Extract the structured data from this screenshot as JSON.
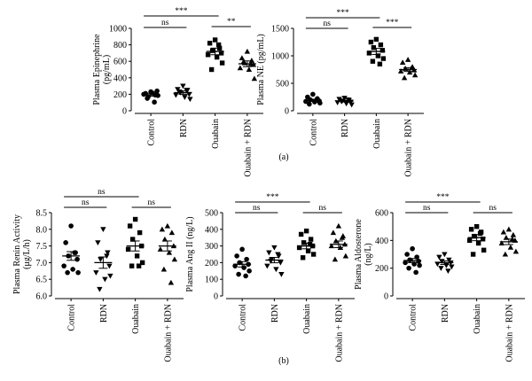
{
  "panel_labels": [
    "(a)",
    "(b)"
  ],
  "chart_data": [
    {
      "type": "scatter",
      "ylabel": "Plasma Epinephrine (pg/mL)",
      "ylim": [
        0,
        1000
      ],
      "yticks": [
        0,
        200,
        400,
        600,
        800,
        1000
      ],
      "categories": [
        "Control",
        "RDN",
        "Ouabain",
        "Ouabain + RDN"
      ],
      "markers": [
        "circle",
        "triangle-down",
        "square",
        "triangle-up"
      ],
      "points": [
        [
          230,
          210,
          190,
          170,
          240,
          200,
          215,
          185,
          150,
          105
        ],
        [
          300,
          260,
          250,
          220,
          200,
          190,
          165,
          140,
          230,
          250
        ],
        [
          860,
          820,
          760,
          730,
          700,
          680,
          650,
          580,
          500,
          800
        ],
        [
          720,
          640,
          610,
          580,
          560,
          520,
          500,
          390,
          600,
          570
        ]
      ],
      "means": [
        195,
        220,
        720,
        570
      ],
      "sems": [
        18,
        20,
        40,
        35
      ],
      "comparisons": [
        {
          "from": 0,
          "to": 2,
          "label": "***"
        },
        {
          "from": 0,
          "to": 1,
          "label": "ns"
        },
        {
          "from": 2,
          "to": 3,
          "label": "**"
        }
      ]
    },
    {
      "type": "scatter",
      "ylabel": "Plasma NE (pg/mL)",
      "ylim": [
        0,
        1500
      ],
      "yticks": [
        0,
        500,
        1000,
        1500
      ],
      "categories": [
        "Control",
        "RDN",
        "Ouabain",
        "Ouabain + RDN"
      ],
      "markers": [
        "circle",
        "triangle-down",
        "square",
        "triangle-up"
      ],
      "points": [
        [
          300,
          250,
          220,
          200,
          180,
          170,
          160,
          140,
          120,
          190
        ],
        [
          230,
          210,
          190,
          170,
          160,
          150,
          130,
          110,
          180,
          200
        ],
        [
          1300,
          1250,
          1200,
          1150,
          1100,
          1050,
          1000,
          950,
          900,
          850
        ],
        [
          930,
          880,
          800,
          770,
          740,
          720,
          700,
          650,
          600,
          780
        ]
      ],
      "means": [
        190,
        175,
        1080,
        750
      ],
      "sems": [
        20,
        15,
        55,
        35
      ],
      "comparisons": [
        {
          "from": 0,
          "to": 2,
          "label": "***"
        },
        {
          "from": 0,
          "to": 1,
          "label": "ns"
        },
        {
          "from": 2,
          "to": 3,
          "label": "***"
        }
      ]
    },
    {
      "type": "scatter",
      "ylabel": "Plasma Renin Activity (μg/L/h)",
      "ylim": [
        6.0,
        8.5
      ],
      "yticks": [
        6.0,
        6.5,
        7.0,
        7.5,
        8.0,
        8.5
      ],
      "categories": [
        "Control",
        "RDN",
        "Ouabain",
        "Ouabain + RDN"
      ],
      "markers": [
        "circle",
        "triangle-down",
        "square",
        "triangle-up"
      ],
      "points": [
        [
          8.1,
          7.6,
          7.3,
          7.2,
          7.1,
          6.9,
          6.8,
          6.7,
          6.7,
          7.3
        ],
        [
          8.0,
          7.6,
          7.3,
          7.1,
          6.9,
          6.7,
          6.5,
          6.6,
          6.2,
          7.2
        ],
        [
          8.3,
          8.1,
          7.9,
          7.7,
          7.5,
          7.4,
          7.2,
          7.0,
          6.9,
          6.9
        ],
        [
          8.1,
          8.0,
          7.9,
          7.7,
          7.5,
          7.4,
          7.3,
          7.1,
          6.8,
          6.4
        ]
      ],
      "means": [
        7.2,
        7.0,
        7.5,
        7.5
      ],
      "sems": [
        0.13,
        0.17,
        0.15,
        0.15
      ],
      "comparisons": [
        {
          "from": 0,
          "to": 2,
          "label": "ns"
        },
        {
          "from": 0,
          "to": 1,
          "label": "ns"
        },
        {
          "from": 2,
          "to": 3,
          "label": "ns"
        }
      ]
    },
    {
      "type": "scatter",
      "ylabel": "Plasma Ang II (ng/L)",
      "ylim": [
        0,
        500
      ],
      "yticks": [
        0,
        100,
        200,
        300,
        400,
        500
      ],
      "categories": [
        "Control",
        "RDN",
        "Ouabain",
        "Ouabain + RDN"
      ],
      "markers": [
        "circle",
        "triangle-down",
        "square",
        "triangle-up"
      ],
      "points": [
        [
          280,
          240,
          220,
          200,
          190,
          180,
          170,
          150,
          130,
          120
        ],
        [
          290,
          260,
          240,
          220,
          200,
          180,
          160,
          130,
          210,
          250
        ],
        [
          390,
          370,
          340,
          320,
          300,
          290,
          270,
          250,
          230,
          310
        ],
        [
          420,
          380,
          360,
          330,
          310,
          300,
          290,
          240,
          220,
          350
        ]
      ],
      "means": [
        190,
        215,
        300,
        310
      ],
      "sems": [
        16,
        16,
        17,
        20
      ],
      "comparisons": [
        {
          "from": 0,
          "to": 2,
          "label": "***"
        },
        {
          "from": 0,
          "to": 1,
          "label": "ns"
        },
        {
          "from": 2,
          "to": 3,
          "label": "ns"
        }
      ]
    },
    {
      "type": "scatter",
      "ylabel": "Plasma Aldosterone (ng/L)",
      "ylim": [
        0,
        600
      ],
      "yticks": [
        0,
        200,
        400,
        600
      ],
      "categories": [
        "Control",
        "RDN",
        "Ouabain",
        "Ouabain + RDN"
      ],
      "markers": [
        "circle",
        "triangle-down",
        "square",
        "triangle-up"
      ],
      "points": [
        [
          340,
          300,
          280,
          260,
          250,
          240,
          230,
          220,
          200,
          170
        ],
        [
          300,
          280,
          260,
          250,
          240,
          230,
          220,
          210,
          200,
          180
        ],
        [
          500,
          480,
          460,
          430,
          410,
          400,
          380,
          330,
          300,
          450
        ],
        [
          480,
          460,
          440,
          420,
          400,
          380,
          350,
          320,
          300,
          410
        ]
      ],
      "means": [
        255,
        240,
        420,
        390
      ],
      "sems": [
        15,
        13,
        22,
        20
      ],
      "comparisons": [
        {
          "from": 0,
          "to": 2,
          "label": "***"
        },
        {
          "from": 0,
          "to": 1,
          "label": "ns"
        },
        {
          "from": 2,
          "to": 3,
          "label": "ns"
        }
      ]
    }
  ]
}
